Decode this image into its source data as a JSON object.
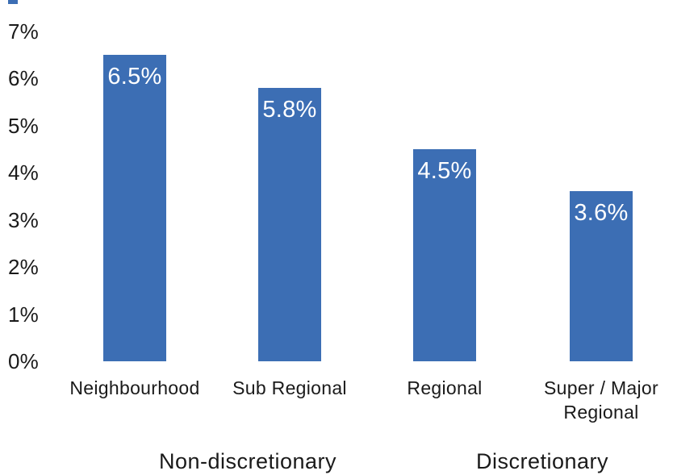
{
  "chart_data": {
    "type": "bar",
    "title": "",
    "xlabel": "",
    "ylabel": "",
    "categories": [
      "Neighbourhood",
      "Sub Regional",
      "Regional",
      "Super / Major Regional"
    ],
    "values": [
      6.5,
      5.8,
      4.5,
      3.6
    ],
    "value_labels": [
      "6.5%",
      "5.8%",
      "4.5%",
      "3.6%"
    ],
    "y_ticks": [
      {
        "label": "7%",
        "value": 7
      },
      {
        "label": "6%",
        "value": 6
      },
      {
        "label": "5%",
        "value": 5
      },
      {
        "label": "4%",
        "value": 4
      },
      {
        "label": "3%",
        "value": 3
      },
      {
        "label": "2%",
        "value": 2
      },
      {
        "label": "1%",
        "value": 1
      },
      {
        "label": "0%",
        "value": 0
      }
    ],
    "ylim": [
      0,
      7
    ],
    "grid": false,
    "legend": false,
    "groups": [
      {
        "label": "Non-discretionary",
        "categories": [
          "Neighbourhood",
          "Sub Regional"
        ]
      },
      {
        "label": "Discretionary",
        "categories": [
          "Regional",
          "Super / Major Regional"
        ]
      }
    ],
    "colors": {
      "bar_fill": "#3C6EB4",
      "value_label_text": "#FFFFFF",
      "axis_text": "#1A1A1A",
      "background": "#FFFFFF"
    }
  }
}
